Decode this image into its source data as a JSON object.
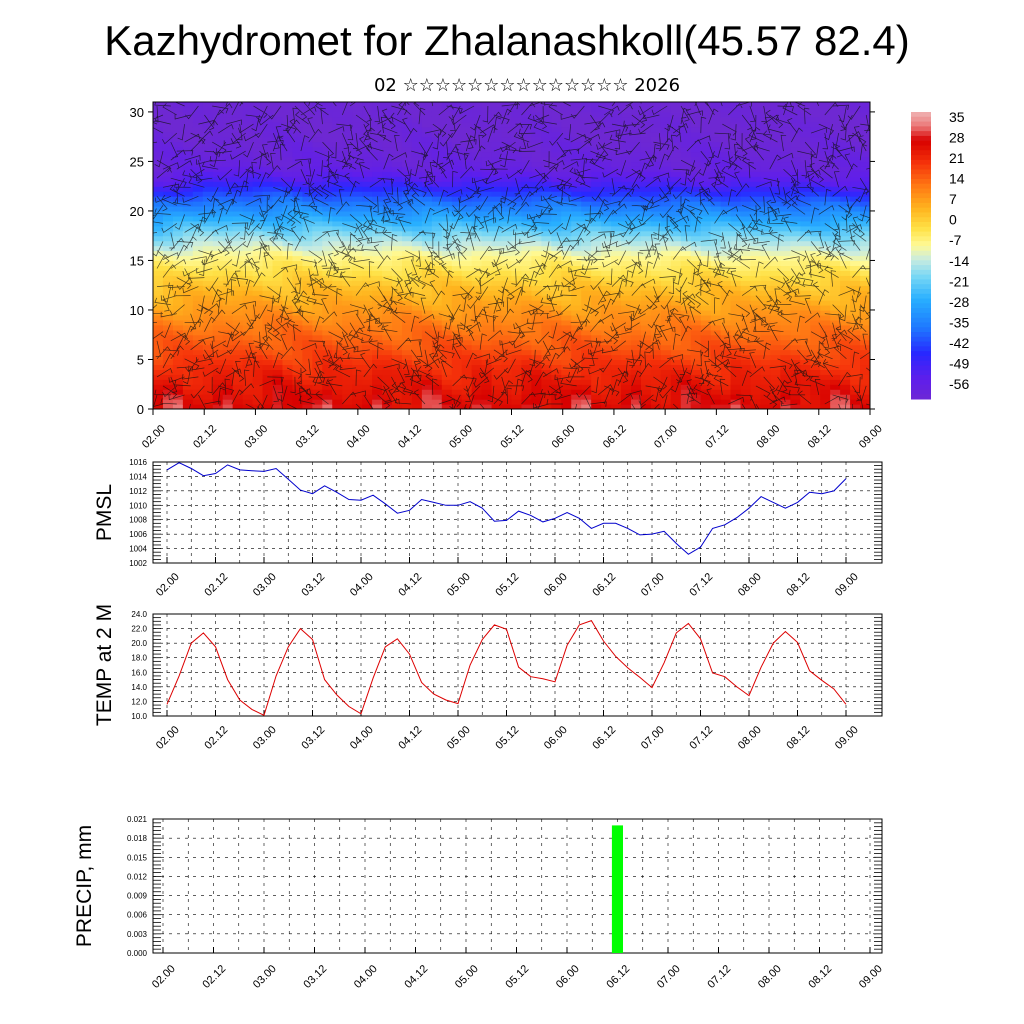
{
  "header": {
    "title": "Kazhydromet for Zhalanashkoll(45.57 82.4)",
    "subtitle": "02 ☆☆☆☆☆☆☆☆☆☆☆☆☆☆ 2026"
  },
  "chart_data": [
    {
      "type": "heatmap",
      "name": "vertical-temperature-section",
      "title": "",
      "xlabel": "",
      "ylabel": "",
      "x_tick_labels": [
        "02.00",
        "02.12",
        "03.00",
        "03.12",
        "04.00",
        "04.12",
        "05.00",
        "05.12",
        "06.00",
        "06.12",
        "07.00",
        "07.12",
        "08.00",
        "08.12",
        "09.00"
      ],
      "y_ticks": [
        0,
        5,
        10,
        15,
        20,
        25,
        30
      ],
      "ylim": [
        0,
        31
      ],
      "overlay": "wind barbs",
      "colorbar": {
        "labels": [
          "35",
          "28",
          "21",
          "14",
          "7",
          "0",
          "-7",
          "-14",
          "-21",
          "-28",
          "-35",
          "-42",
          "-49",
          "-56"
        ],
        "range": [
          -63,
          38
        ]
      },
      "profile_levels": [
        0,
        4,
        8,
        12,
        15,
        17,
        19,
        21,
        22.5,
        24,
        27,
        31
      ],
      "profile_temps": [
        27,
        21,
        12,
        2,
        -8,
        -18,
        -30,
        -42,
        -53,
        -60,
        -63,
        -64
      ],
      "tropopause_height": [
        21.5,
        22.2,
        22.0,
        21.6
      ],
      "tropopause_x": [
        0,
        1,
        5,
        14
      ]
    },
    {
      "type": "line",
      "name": "pmsl",
      "ylabel": "PMSL",
      "ylim": [
        1002,
        1016
      ],
      "y_tick_labels": [
        "1002",
        "1004",
        "1006",
        "1008",
        "1010",
        "1012",
        "1014",
        "1016"
      ],
      "y_tick_values": [
        1002,
        1004,
        1006,
        1008,
        1010,
        1012,
        1014,
        1016
      ],
      "x_tick_labels": [
        "02.00",
        "02.12",
        "03.00",
        "03.12",
        "04.00",
        "04.12",
        "05.00",
        "05.12",
        "06.00",
        "06.12",
        "07.00",
        "07.12",
        "08.00",
        "08.12",
        "09.00"
      ],
      "color": "#0000cc",
      "values": [
        1014.9,
        1015.9,
        1015.1,
        1014.1,
        1014.4,
        1015.6,
        1014.9,
        1014.8,
        1014.7,
        1015.1,
        1013.6,
        1012.1,
        1011.6,
        1012.7,
        1011.8,
        1010.8,
        1010.7,
        1011.4,
        1010.2,
        1008.9,
        1009.3,
        1010.8,
        1010.4,
        1010.0,
        1010.0,
        1010.5,
        1009.6,
        1007.8,
        1007.9,
        1009.2,
        1008.6,
        1007.7,
        1008.2,
        1009.0,
        1008.2,
        1006.8,
        1007.5,
        1007.5,
        1006.8,
        1005.9,
        1006.0,
        1006.4,
        1004.7,
        1003.2,
        1004.2,
        1006.8,
        1007.3,
        1008.3,
        1009.6,
        1011.2,
        1010.4,
        1009.6,
        1010.4,
        1011.8,
        1011.6,
        1012.0,
        1013.7
      ]
    },
    {
      "type": "line",
      "name": "temperature-2m",
      "ylabel": "TEMP at 2 M",
      "ylim": [
        10,
        24
      ],
      "y_tick_labels": [
        "10.0",
        "12.0",
        "14.0",
        "16.0",
        "18.0",
        "20.0",
        "22.0",
        "24.0"
      ],
      "y_tick_values": [
        10,
        12,
        14,
        16,
        18,
        20,
        22,
        24
      ],
      "x_tick_labels": [
        "02.00",
        "02.12",
        "03.00",
        "03.12",
        "04.00",
        "04.12",
        "05.00",
        "05.12",
        "06.00",
        "06.12",
        "07.00",
        "07.12",
        "08.00",
        "08.12",
        "09.00"
      ],
      "color": "#dd0000",
      "values": [
        11.6,
        15.5,
        20.0,
        21.4,
        19.5,
        15.0,
        12.2,
        10.9,
        10.1,
        15.5,
        19.5,
        22.0,
        20.5,
        15.0,
        12.9,
        11.3,
        10.3,
        15.2,
        19.5,
        20.6,
        18.5,
        14.6,
        13.0,
        12.2,
        11.7,
        17.0,
        20.5,
        22.5,
        21.9,
        16.7,
        15.4,
        15.1,
        14.7,
        19.7,
        22.5,
        23.1,
        20.3,
        18.2,
        16.6,
        15.3,
        13.9,
        17.3,
        21.4,
        22.7,
        20.6,
        15.9,
        15.4,
        14.0,
        12.8,
        16.7,
        20.0,
        21.6,
        20.1,
        16.2,
        14.9,
        13.7,
        11.6
      ]
    },
    {
      "type": "bar",
      "name": "precipitation",
      "ylabel": "PRECIP, mm",
      "ylim": [
        0,
        0.021
      ],
      "y_tick_labels": [
        "0.000",
        "0.003",
        "0.006",
        "0.009",
        "0.012",
        "0.015",
        "0.018",
        "0.021"
      ],
      "y_tick_values": [
        0,
        0.003,
        0.006,
        0.009,
        0.012,
        0.015,
        0.018,
        0.021
      ],
      "x_tick_labels": [
        "02.00",
        "02.12",
        "03.00",
        "03.12",
        "04.00",
        "04.12",
        "05.00",
        "05.12",
        "06.00",
        "06.12",
        "07.00",
        "07.12",
        "08.00",
        "08.12",
        "09.00"
      ],
      "color": "#00ff00",
      "bars": [
        {
          "x": "06.12",
          "value": 0.02
        }
      ]
    }
  ]
}
